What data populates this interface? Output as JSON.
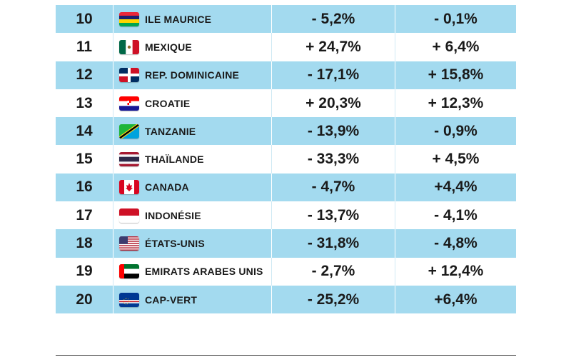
{
  "rows": [
    {
      "rank": "10",
      "country": "ILE MAURICE",
      "v1": "- 5,2%",
      "v2": "- 0,1%",
      "flag": "mauritius-flag-icon"
    },
    {
      "rank": "11",
      "country": "MEXIQUE",
      "v1": "+ 24,7%",
      "v2": "+ 6,4%",
      "flag": "mexico-flag-icon"
    },
    {
      "rank": "12",
      "country": "REP. DOMINICAINE",
      "v1": "- 17,1%",
      "v2": "+ 15,8%",
      "flag": "dominican-republic-flag-icon"
    },
    {
      "rank": "13",
      "country": "CROATIE",
      "v1": "+ 20,3%",
      "v2": "+ 12,3%",
      "flag": "croatia-flag-icon"
    },
    {
      "rank": "14",
      "country": "TANZANIE",
      "v1": "- 13,9%",
      "v2": "- 0,9%",
      "flag": "tanzania-flag-icon"
    },
    {
      "rank": "15",
      "country": "THAÏLANDE",
      "v1": "- 33,3%",
      "v2": "+ 4,5%",
      "flag": "thailand-flag-icon"
    },
    {
      "rank": "16",
      "country": "CANADA",
      "v1": "- 4,7%",
      "v2": "+4,4%",
      "flag": "canada-flag-icon"
    },
    {
      "rank": "17",
      "country": "INDONÉSIE",
      "v1": "- 13,7%",
      "v2": "- 4,1%",
      "flag": "indonesia-flag-icon"
    },
    {
      "rank": "18",
      "country": "ÉTATS-UNIS",
      "v1": "- 31,8%",
      "v2": "- 4,8%",
      "flag": "usa-flag-icon"
    },
    {
      "rank": "19",
      "country": "EMIRATS ARABES UNIS",
      "v1": "- 2,7%",
      "v2": "+ 12,4%",
      "flag": "uae-flag-icon"
    },
    {
      "rank": "20",
      "country": "CAP-VERT",
      "v1": "- 25,2%",
      "v2": "+6,4%",
      "flag": "cape-verde-flag-icon"
    }
  ],
  "colors": {
    "stripe": "#a3daef",
    "text": "#1a1a1a"
  }
}
